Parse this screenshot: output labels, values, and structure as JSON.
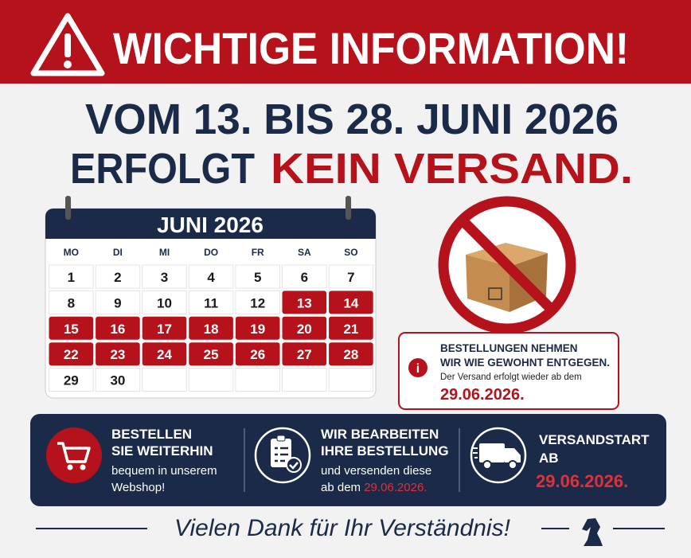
{
  "header": {
    "title": "WICHTIGE INFORMATION!"
  },
  "headline": {
    "line1": "VOM 13. BIS 28. JUNI 2026",
    "line2_start": "ERFOLGT",
    "line2_highlight": "KEIN VERSAND."
  },
  "calendar": {
    "title": "JUNI 2026",
    "weekdays": [
      "MO",
      "DI",
      "MI",
      "DO",
      "FR",
      "SA",
      "SO"
    ],
    "weeks": [
      [
        {
          "label": "1"
        },
        {
          "label": "2"
        },
        {
          "label": "3"
        },
        {
          "label": "4"
        },
        {
          "label": "5"
        },
        {
          "label": "6"
        },
        {
          "label": "7"
        }
      ],
      [
        {
          "label": "8"
        },
        {
          "label": "9"
        },
        {
          "label": "10"
        },
        {
          "label": "11"
        },
        {
          "label": "12"
        },
        {
          "label": "13",
          "closed": true
        },
        {
          "label": "14",
          "closed": true
        }
      ],
      [
        {
          "label": "15",
          "closed": true
        },
        {
          "label": "16",
          "closed": true
        },
        {
          "label": "17",
          "closed": true
        },
        {
          "label": "18",
          "closed": true
        },
        {
          "label": "19",
          "closed": true
        },
        {
          "label": "20",
          "closed": true
        },
        {
          "label": "21",
          "closed": true
        }
      ],
      [
        {
          "label": "22",
          "closed": true
        },
        {
          "label": "23",
          "closed": true
        },
        {
          "label": "24",
          "closed": true
        },
        {
          "label": "25",
          "closed": true
        },
        {
          "label": "26",
          "closed": true
        },
        {
          "label": "27",
          "closed": true
        },
        {
          "label": "28",
          "closed": true
        }
      ],
      [
        {
          "label": "29"
        },
        {
          "label": "30"
        }
      ]
    ]
  },
  "info_box": {
    "title_line1": "BESTELLUNGEN NEHMEN",
    "title_line2": "WIR WIE GEWOHNT ENTGEGEN.",
    "text": "Der Versand erfolgt wieder ab dem",
    "date": "29.06.2026."
  },
  "features": [
    {
      "title_line1": "BESTELLEN",
      "title_line2": "SIE WEITERHIN",
      "text_line1": "bequem in unserem",
      "text_line2": "Webshop!"
    },
    {
      "title_line1": "WIR BEARBEITEN",
      "title_line2": "IHRE BESTELLUNG",
      "text_line1": "und versenden diese",
      "text_line2": "ab dem",
      "date": "29.06.2026."
    },
    {
      "title_line1": "VERSANDSTART",
      "title_line2": "AB",
      "date": "29.06.2026."
    }
  ],
  "footer": {
    "text": "Vielen Dank für Ihr Verständnis!"
  }
}
